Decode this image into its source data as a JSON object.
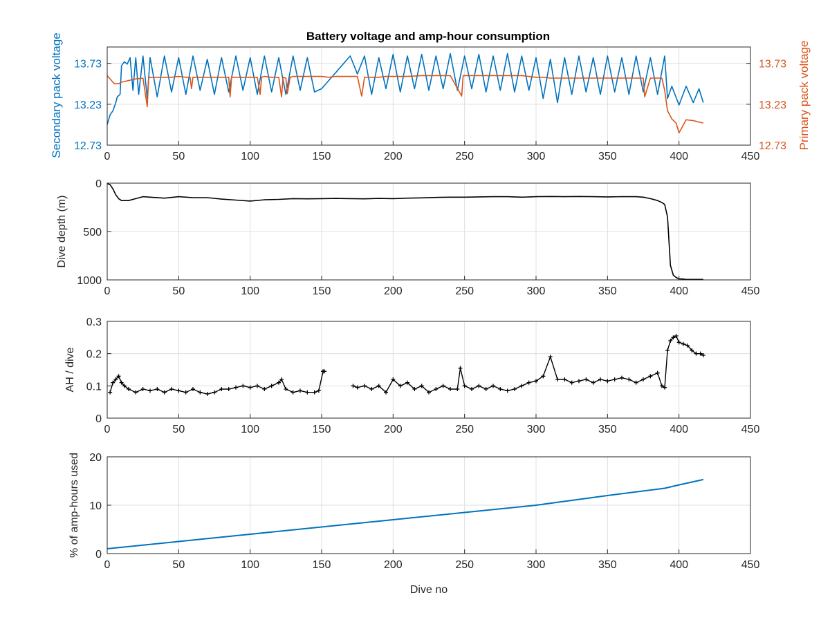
{
  "colors": {
    "secondary": "#0072BD",
    "primary": "#D95319",
    "black": "#000000",
    "grid": "#dfdfdf",
    "axis": "#262626"
  },
  "chart_data": [
    {
      "type": "line",
      "title": "Battery voltage and amp-hour consumption",
      "xlabel": "",
      "xlim": [
        0,
        450
      ],
      "xticks": [
        "0",
        "50",
        "100",
        "150",
        "200",
        "250",
        "300",
        "350",
        "400",
        "450"
      ],
      "grid": true,
      "ylabel_left": "Secondary pack voltage",
      "ylabel_right": "Primary pack voltage",
      "ylim": [
        12.73,
        13.93
      ],
      "yticks": [
        "12.73",
        "13.23",
        "13.73"
      ],
      "series": [
        {
          "axis": "left",
          "x": [
            0,
            2,
            4,
            6,
            7,
            9,
            10,
            12,
            14,
            16,
            18,
            20,
            22,
            25,
            28,
            30,
            35,
            40,
            45,
            50,
            55,
            60,
            65,
            70,
            75,
            80,
            85,
            90,
            95,
            100,
            105,
            110,
            115,
            120,
            125,
            130,
            135,
            140,
            145,
            150,
            155,
            160,
            165,
            170,
            175,
            180,
            185,
            190,
            195,
            200,
            205,
            210,
            215,
            220,
            225,
            230,
            235,
            240,
            245,
            250,
            255,
            260,
            265,
            270,
            275,
            280,
            285,
            290,
            295,
            300,
            305,
            310,
            315,
            320,
            325,
            330,
            335,
            340,
            345,
            350,
            355,
            360,
            365,
            370,
            375,
            380,
            385,
            390,
            392,
            395,
            400,
            405,
            410,
            414,
            417
          ],
          "values": [
            12.98,
            13.1,
            13.15,
            13.25,
            13.32,
            13.35,
            13.7,
            13.75,
            13.72,
            13.8,
            13.4,
            13.8,
            13.35,
            13.82,
            13.3,
            13.8,
            13.32,
            13.82,
            13.38,
            13.8,
            13.35,
            13.82,
            13.4,
            13.78,
            13.35,
            13.8,
            13.38,
            13.82,
            13.4,
            13.8,
            13.35,
            13.82,
            13.38,
            13.8,
            13.35,
            13.82,
            13.4,
            13.8,
            13.38,
            13.42,
            13.52,
            13.62,
            13.72,
            13.82,
            13.6,
            13.82,
            13.35,
            13.8,
            13.42,
            13.84,
            13.38,
            13.82,
            13.42,
            13.84,
            13.4,
            13.82,
            13.42,
            13.85,
            13.4,
            13.82,
            13.42,
            13.84,
            13.38,
            13.82,
            13.4,
            13.85,
            13.38,
            13.82,
            13.4,
            13.8,
            13.3,
            13.78,
            13.25,
            13.8,
            13.35,
            13.82,
            13.38,
            13.8,
            13.35,
            13.82,
            13.38,
            13.8,
            13.35,
            13.82,
            13.38,
            13.8,
            13.35,
            13.82,
            13.3,
            13.45,
            13.22,
            13.45,
            13.25,
            13.42,
            13.25
          ]
        },
        {
          "axis": "right",
          "x": [
            0,
            3,
            5,
            8,
            10,
            15,
            20,
            25,
            28,
            29,
            30,
            35,
            40,
            45,
            50,
            55,
            58,
            59,
            60,
            65,
            70,
            75,
            80,
            85,
            86,
            87,
            90,
            95,
            100,
            105,
            107,
            108,
            110,
            115,
            120,
            122,
            123,
            125,
            126,
            128,
            130,
            135,
            140,
            145,
            150,
            155,
            160,
            170,
            175,
            178,
            180,
            185,
            190,
            195,
            200,
            210,
            220,
            240,
            248,
            249,
            250,
            260,
            270,
            280,
            290,
            300,
            305,
            310,
            320,
            330,
            340,
            350,
            360,
            370,
            375,
            376,
            380,
            385,
            388,
            390,
            392,
            395,
            398,
            400,
            405,
            410,
            417
          ],
          "values": [
            13.58,
            13.52,
            13.48,
            13.48,
            13.5,
            13.52,
            13.54,
            13.55,
            13.2,
            13.55,
            13.56,
            13.56,
            13.56,
            13.56,
            13.57,
            13.56,
            13.56,
            13.42,
            13.56,
            13.56,
            13.56,
            13.56,
            13.56,
            13.56,
            13.32,
            13.56,
            13.56,
            13.56,
            13.56,
            13.56,
            13.35,
            13.56,
            13.57,
            13.56,
            13.56,
            13.32,
            13.56,
            13.55,
            13.36,
            13.56,
            13.57,
            13.57,
            13.57,
            13.57,
            13.57,
            13.56,
            13.57,
            13.57,
            13.57,
            13.33,
            13.56,
            13.56,
            13.56,
            13.57,
            13.57,
            13.57,
            13.58,
            13.58,
            13.33,
            13.58,
            13.58,
            13.58,
            13.58,
            13.58,
            13.58,
            13.56,
            13.56,
            13.55,
            13.55,
            13.55,
            13.55,
            13.55,
            13.55,
            13.55,
            13.55,
            13.32,
            13.55,
            13.55,
            13.55,
            13.4,
            13.15,
            13.05,
            13.0,
            12.88,
            13.04,
            13.03,
            13.0
          ]
        }
      ]
    },
    {
      "type": "line",
      "xlabel": "",
      "ylabel": "Dive depth (m)",
      "xlim": [
        0,
        450
      ],
      "xticks": [
        "0",
        "50",
        "100",
        "150",
        "200",
        "250",
        "300",
        "350",
        "400",
        "450"
      ],
      "ylim": [
        0,
        1000
      ],
      "yreversed": true,
      "yticks": [
        "0",
        "500",
        "1000"
      ],
      "grid": true,
      "series": [
        {
          "x": [
            0,
            2,
            4,
            6,
            8,
            10,
            15,
            20,
            25,
            30,
            40,
            50,
            60,
            70,
            80,
            90,
            100,
            110,
            120,
            130,
            140,
            150,
            160,
            170,
            180,
            190,
            200,
            210,
            220,
            230,
            240,
            250,
            260,
            270,
            280,
            290,
            300,
            310,
            320,
            330,
            340,
            350,
            360,
            370,
            375,
            380,
            385,
            388,
            390,
            392,
            394,
            396,
            398,
            400,
            402,
            405,
            410,
            414,
            417
          ],
          "values": [
            5,
            15,
            60,
            120,
            160,
            180,
            180,
            160,
            140,
            145,
            155,
            140,
            150,
            150,
            165,
            175,
            185,
            172,
            168,
            160,
            162,
            160,
            158,
            160,
            162,
            158,
            160,
            155,
            152,
            148,
            145,
            145,
            142,
            140,
            140,
            145,
            140,
            138,
            140,
            138,
            140,
            142,
            140,
            140,
            145,
            160,
            180,
            200,
            220,
            350,
            850,
            950,
            975,
            990,
            990,
            995,
            995,
            995,
            995
          ]
        }
      ]
    },
    {
      "type": "scatter",
      "xlabel": "",
      "ylabel": "AH / dive",
      "xlim": [
        0,
        450
      ],
      "xticks": [
        "0",
        "50",
        "100",
        "150",
        "200",
        "250",
        "300",
        "350",
        "400",
        "450"
      ],
      "ylim": [
        0,
        0.3
      ],
      "yticks": [
        "0",
        "0.1",
        "0.2",
        "0.3"
      ],
      "grid": true,
      "series": [
        {
          "x": [
            2,
            4,
            6,
            8,
            10,
            12,
            15,
            20,
            25,
            30,
            35,
            40,
            45,
            50,
            55,
            60,
            65,
            70,
            75,
            80,
            85,
            90,
            95,
            100,
            105,
            110,
            115,
            120,
            122,
            125,
            130,
            135,
            140,
            145,
            148,
            151,
            151,
            152,
            172,
            175,
            180,
            185,
            190,
            195,
            200,
            205,
            210,
            215,
            220,
            225,
            230,
            235,
            240,
            245,
            247,
            250,
            255,
            260,
            265,
            270,
            275,
            280,
            285,
            290,
            295,
            300,
            305,
            310,
            315,
            320,
            325,
            330,
            335,
            340,
            345,
            350,
            355,
            360,
            365,
            370,
            375,
            380,
            385,
            388,
            390,
            392,
            394,
            396,
            398,
            400,
            403,
            406,
            409,
            412,
            415,
            417
          ],
          "values": [
            0.08,
            0.11,
            0.12,
            0.13,
            0.11,
            0.1,
            0.09,
            0.08,
            0.09,
            0.085,
            0.09,
            0.08,
            0.09,
            0.085,
            0.08,
            0.09,
            0.08,
            0.075,
            0.08,
            0.09,
            0.09,
            0.095,
            0.1,
            0.095,
            0.1,
            0.09,
            0.1,
            0.11,
            0.12,
            0.09,
            0.08,
            0.085,
            0.08,
            0.08,
            0.085,
            0.145,
            0.145,
            0.145,
            0.1,
            0.095,
            0.1,
            0.09,
            0.1,
            0.08,
            0.12,
            0.1,
            0.11,
            0.09,
            0.1,
            0.08,
            0.09,
            0.1,
            0.09,
            0.09,
            0.155,
            0.1,
            0.09,
            0.1,
            0.09,
            0.1,
            0.09,
            0.085,
            0.09,
            0.1,
            0.11,
            0.115,
            0.13,
            0.19,
            0.12,
            0.12,
            0.11,
            0.115,
            0.12,
            0.11,
            0.12,
            0.115,
            0.12,
            0.125,
            0.12,
            0.11,
            0.12,
            0.13,
            0.14,
            0.1,
            0.095,
            0.21,
            0.24,
            0.25,
            0.255,
            0.235,
            0.23,
            0.225,
            0.21,
            0.2,
            0.2,
            0.195
          ]
        }
      ]
    },
    {
      "type": "line",
      "xlabel": "Dive no",
      "ylabel": "% of amp-hours used",
      "xlim": [
        0,
        450
      ],
      "xticks": [
        "0",
        "50",
        "100",
        "150",
        "200",
        "250",
        "300",
        "350",
        "400",
        "450"
      ],
      "ylim": [
        0,
        20
      ],
      "yticks": [
        "0",
        "10",
        "20"
      ],
      "grid": true,
      "series": [
        {
          "x": [
            0,
            50,
            100,
            150,
            200,
            250,
            300,
            350,
            390,
            400,
            417
          ],
          "values": [
            1.0,
            2.5,
            4.0,
            5.5,
            7.0,
            8.5,
            10.0,
            12.0,
            13.5,
            14.2,
            15.3
          ]
        }
      ]
    }
  ]
}
